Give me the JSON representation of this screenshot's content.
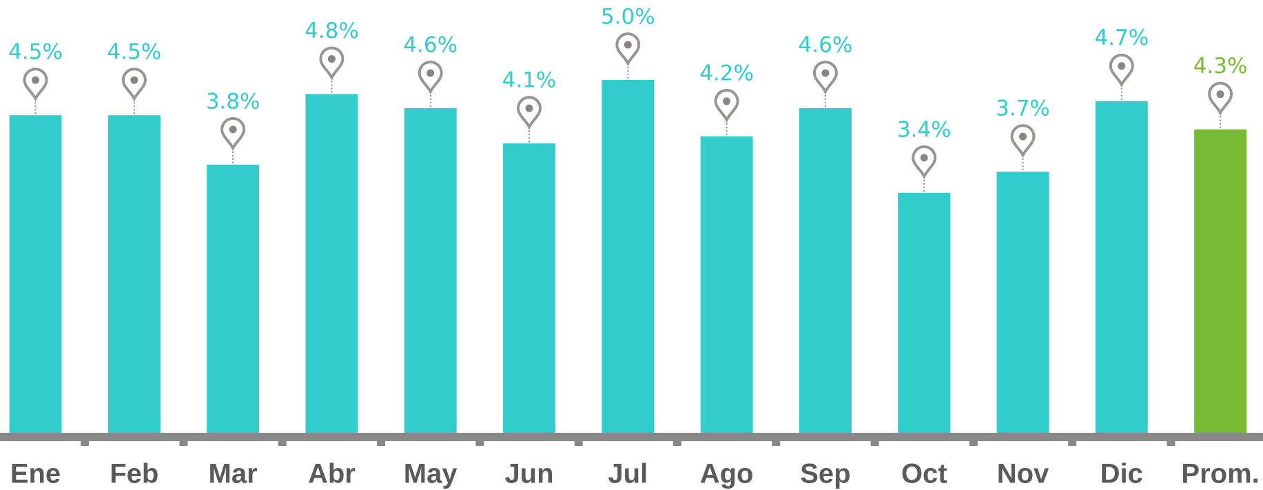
{
  "chart_data": {
    "type": "bar",
    "categories": [
      "Ene",
      "Feb",
      "Mar",
      "Abr",
      "May",
      "Jun",
      "Jul",
      "Ago",
      "Sep",
      "Oct",
      "Nov",
      "Dic",
      "Prom."
    ],
    "values": [
      4.5,
      4.5,
      3.8,
      4.8,
      4.6,
      4.1,
      5.0,
      4.2,
      4.6,
      3.4,
      3.7,
      4.7,
      4.3
    ],
    "value_labels": [
      "4.5%",
      "4.5%",
      "3.8%",
      "4.8%",
      "4.6%",
      "4.1%",
      "5.0%",
      "4.2%",
      "4.6%",
      "3.4%",
      "3.7%",
      "4.7%",
      "4.3%"
    ],
    "colors": [
      "#33cccc",
      "#33cccc",
      "#33cccc",
      "#33cccc",
      "#33cccc",
      "#33cccc",
      "#33cccc",
      "#33cccc",
      "#33cccc",
      "#33cccc",
      "#33cccc",
      "#33cccc",
      "#77bb33"
    ]
  }
}
